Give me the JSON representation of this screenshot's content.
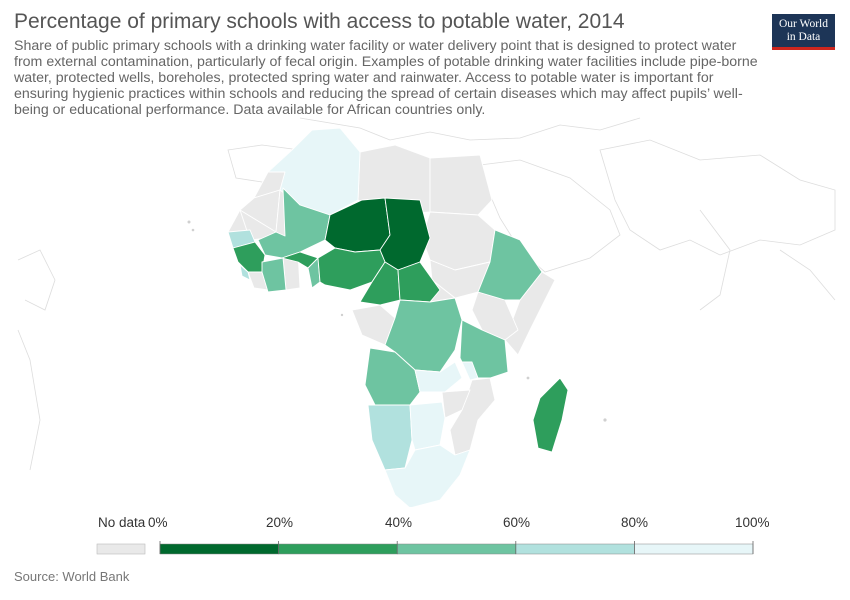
{
  "title": "Percentage of primary schools with access to potable water, 2014",
  "subtitle": "Share of public primary schools with a drinking water facility or water delivery point that is designed to protect water from external contamination, particularly of fecal origin. Examples of potable drinking water facilities include pipe-borne water, protected wells, boreholes, protected spring water and rainwater. Access to potable water is important for ensuring hygienic practices within schools and reducing the spread of certain diseases which may affect pupils’ well-being or educational performance. Data available for African countries only.",
  "logo": {
    "line1": "Our World",
    "line2": "in Data"
  },
  "source": "Source: World Bank",
  "legend": {
    "no_data_label": "No data",
    "no_data_color": "#e9e9e9",
    "ticks": [
      "0%",
      "20%",
      "40%",
      "60%",
      "80%",
      "100%"
    ],
    "bins": [
      {
        "from": 0,
        "to": 20,
        "color": "#00692e"
      },
      {
        "from": 20,
        "to": 40,
        "color": "#2e9e5c"
      },
      {
        "from": 40,
        "to": 60,
        "color": "#6ec4a1"
      },
      {
        "from": 60,
        "to": 80,
        "color": "#b1e1de"
      },
      {
        "from": 80,
        "to": 100,
        "color": "#e7f6f8"
      }
    ]
  },
  "map_colors": {
    "no_data": "#e9e9e9",
    "border": "#c8c8c8",
    "coast": "#dcdcdc",
    "background": "#ffffff"
  }
}
